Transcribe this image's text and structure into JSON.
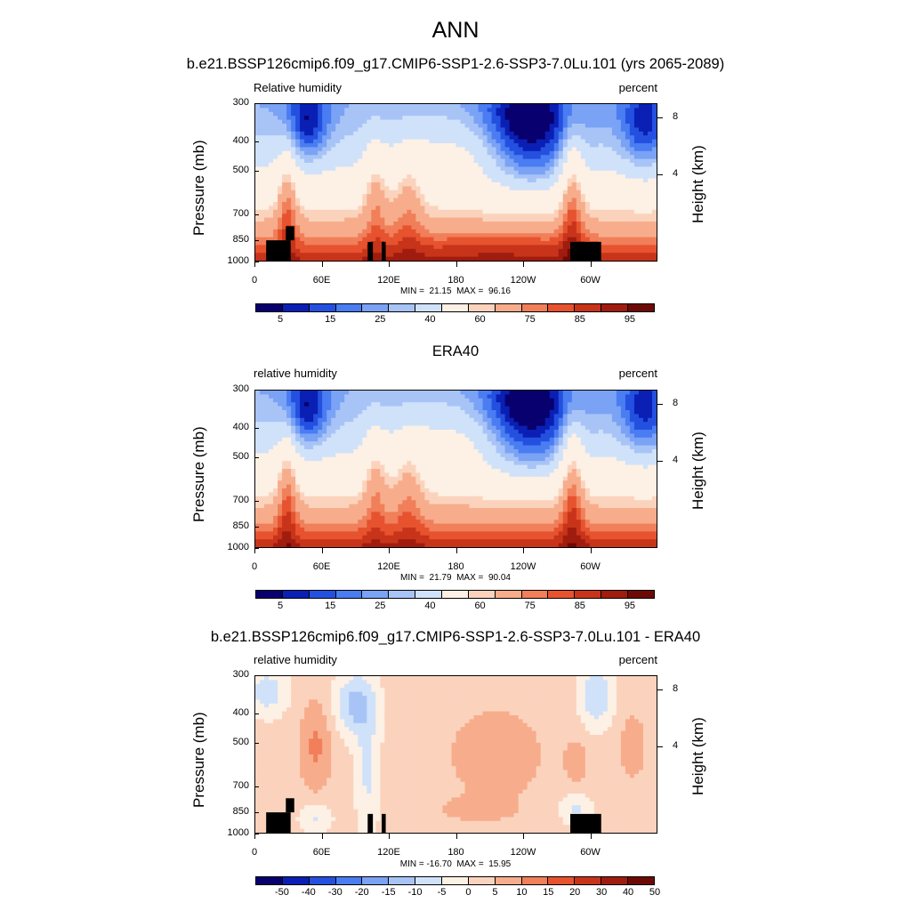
{
  "main_title": "ANN",
  "colors": {
    "abs_palette": [
      "#08006e",
      "#0a1fb4",
      "#2450e0",
      "#4a7cf2",
      "#7aa2f5",
      "#a8c4f7",
      "#d0e2fa",
      "#fdf0e4",
      "#fbd3bd",
      "#f7ad8c",
      "#f07f5a",
      "#e6532e",
      "#c8341a",
      "#a01c0e",
      "#6e0a05"
    ],
    "diff_palette": [
      "#08006e",
      "#0a1fb4",
      "#2450e0",
      "#4a7cf2",
      "#7aa2f5",
      "#a8c4f7",
      "#d0e2fa",
      "#fdf0e4",
      "#fbd3bd",
      "#f7ad8c",
      "#f07f5a",
      "#e6532e",
      "#c8341a",
      "#a01c0e",
      "#6e0a05"
    ],
    "terrain": "#000000"
  },
  "chart_data": [
    {
      "type": "heatmap",
      "title": "b.e21.BSSP126cmip6.f09_g17.CMIP6-SSP1-2.6-SSP3-7.0Lu.101 (yrs 2065-2089)",
      "variable": "Relative humidity",
      "units": "percent",
      "xlabel": "",
      "ylabel": "Pressure (mb)",
      "y2label": "Height (km)",
      "xticks": [
        "0",
        "60E",
        "120E",
        "180",
        "120W",
        "60W"
      ],
      "yticks": [
        "300",
        "400",
        "500",
        "700",
        "850",
        "1000"
      ],
      "y2ticks": [
        "8",
        "4"
      ],
      "min_label": "MIN =  21.15  MAX =  96.16",
      "min": 21.15,
      "max": 96.16,
      "colorbar_labels": [
        "5",
        "15",
        "25",
        "40",
        "60",
        "75",
        "85",
        "95"
      ],
      "terrain": true
    },
    {
      "type": "heatmap",
      "title": "ERA40",
      "variable": "relative humidity",
      "units": "percent",
      "xlabel": "",
      "ylabel": "Pressure (mb)",
      "y2label": "Height (km)",
      "xticks": [
        "0",
        "60E",
        "120E",
        "180",
        "120W",
        "60W"
      ],
      "yticks": [
        "300",
        "400",
        "500",
        "700",
        "850",
        "1000"
      ],
      "y2ticks": [
        "8",
        "4"
      ],
      "min_label": "MIN =  21.79  MAX =  90.04",
      "min": 21.79,
      "max": 90.04,
      "colorbar_labels": [
        "5",
        "15",
        "25",
        "40",
        "60",
        "75",
        "85",
        "95"
      ],
      "terrain": false
    },
    {
      "type": "heatmap",
      "title": "b.e21.BSSP126cmip6.f09_g17.CMIP6-SSP1-2.6-SSP3-7.0Lu.101 - ERA40",
      "variable": "relative humidity",
      "units": "percent",
      "xlabel": "",
      "ylabel": "Pressure (mb)",
      "y2label": "Height (km)",
      "xticks": [
        "0",
        "60E",
        "120E",
        "180",
        "120W",
        "60W"
      ],
      "yticks": [
        "300",
        "400",
        "500",
        "700",
        "850",
        "1000"
      ],
      "y2ticks": [
        "8",
        "4"
      ],
      "min_label": "MIN = -16.70  MAX =  15.95",
      "min": -16.7,
      "max": 15.95,
      "colorbar_labels": [
        "-50",
        "-40",
        "-30",
        "-20",
        "-15",
        "-10",
        "-5",
        "0",
        "5",
        "10",
        "15",
        "20",
        "30",
        "40",
        "50"
      ],
      "terrain": true
    }
  ]
}
